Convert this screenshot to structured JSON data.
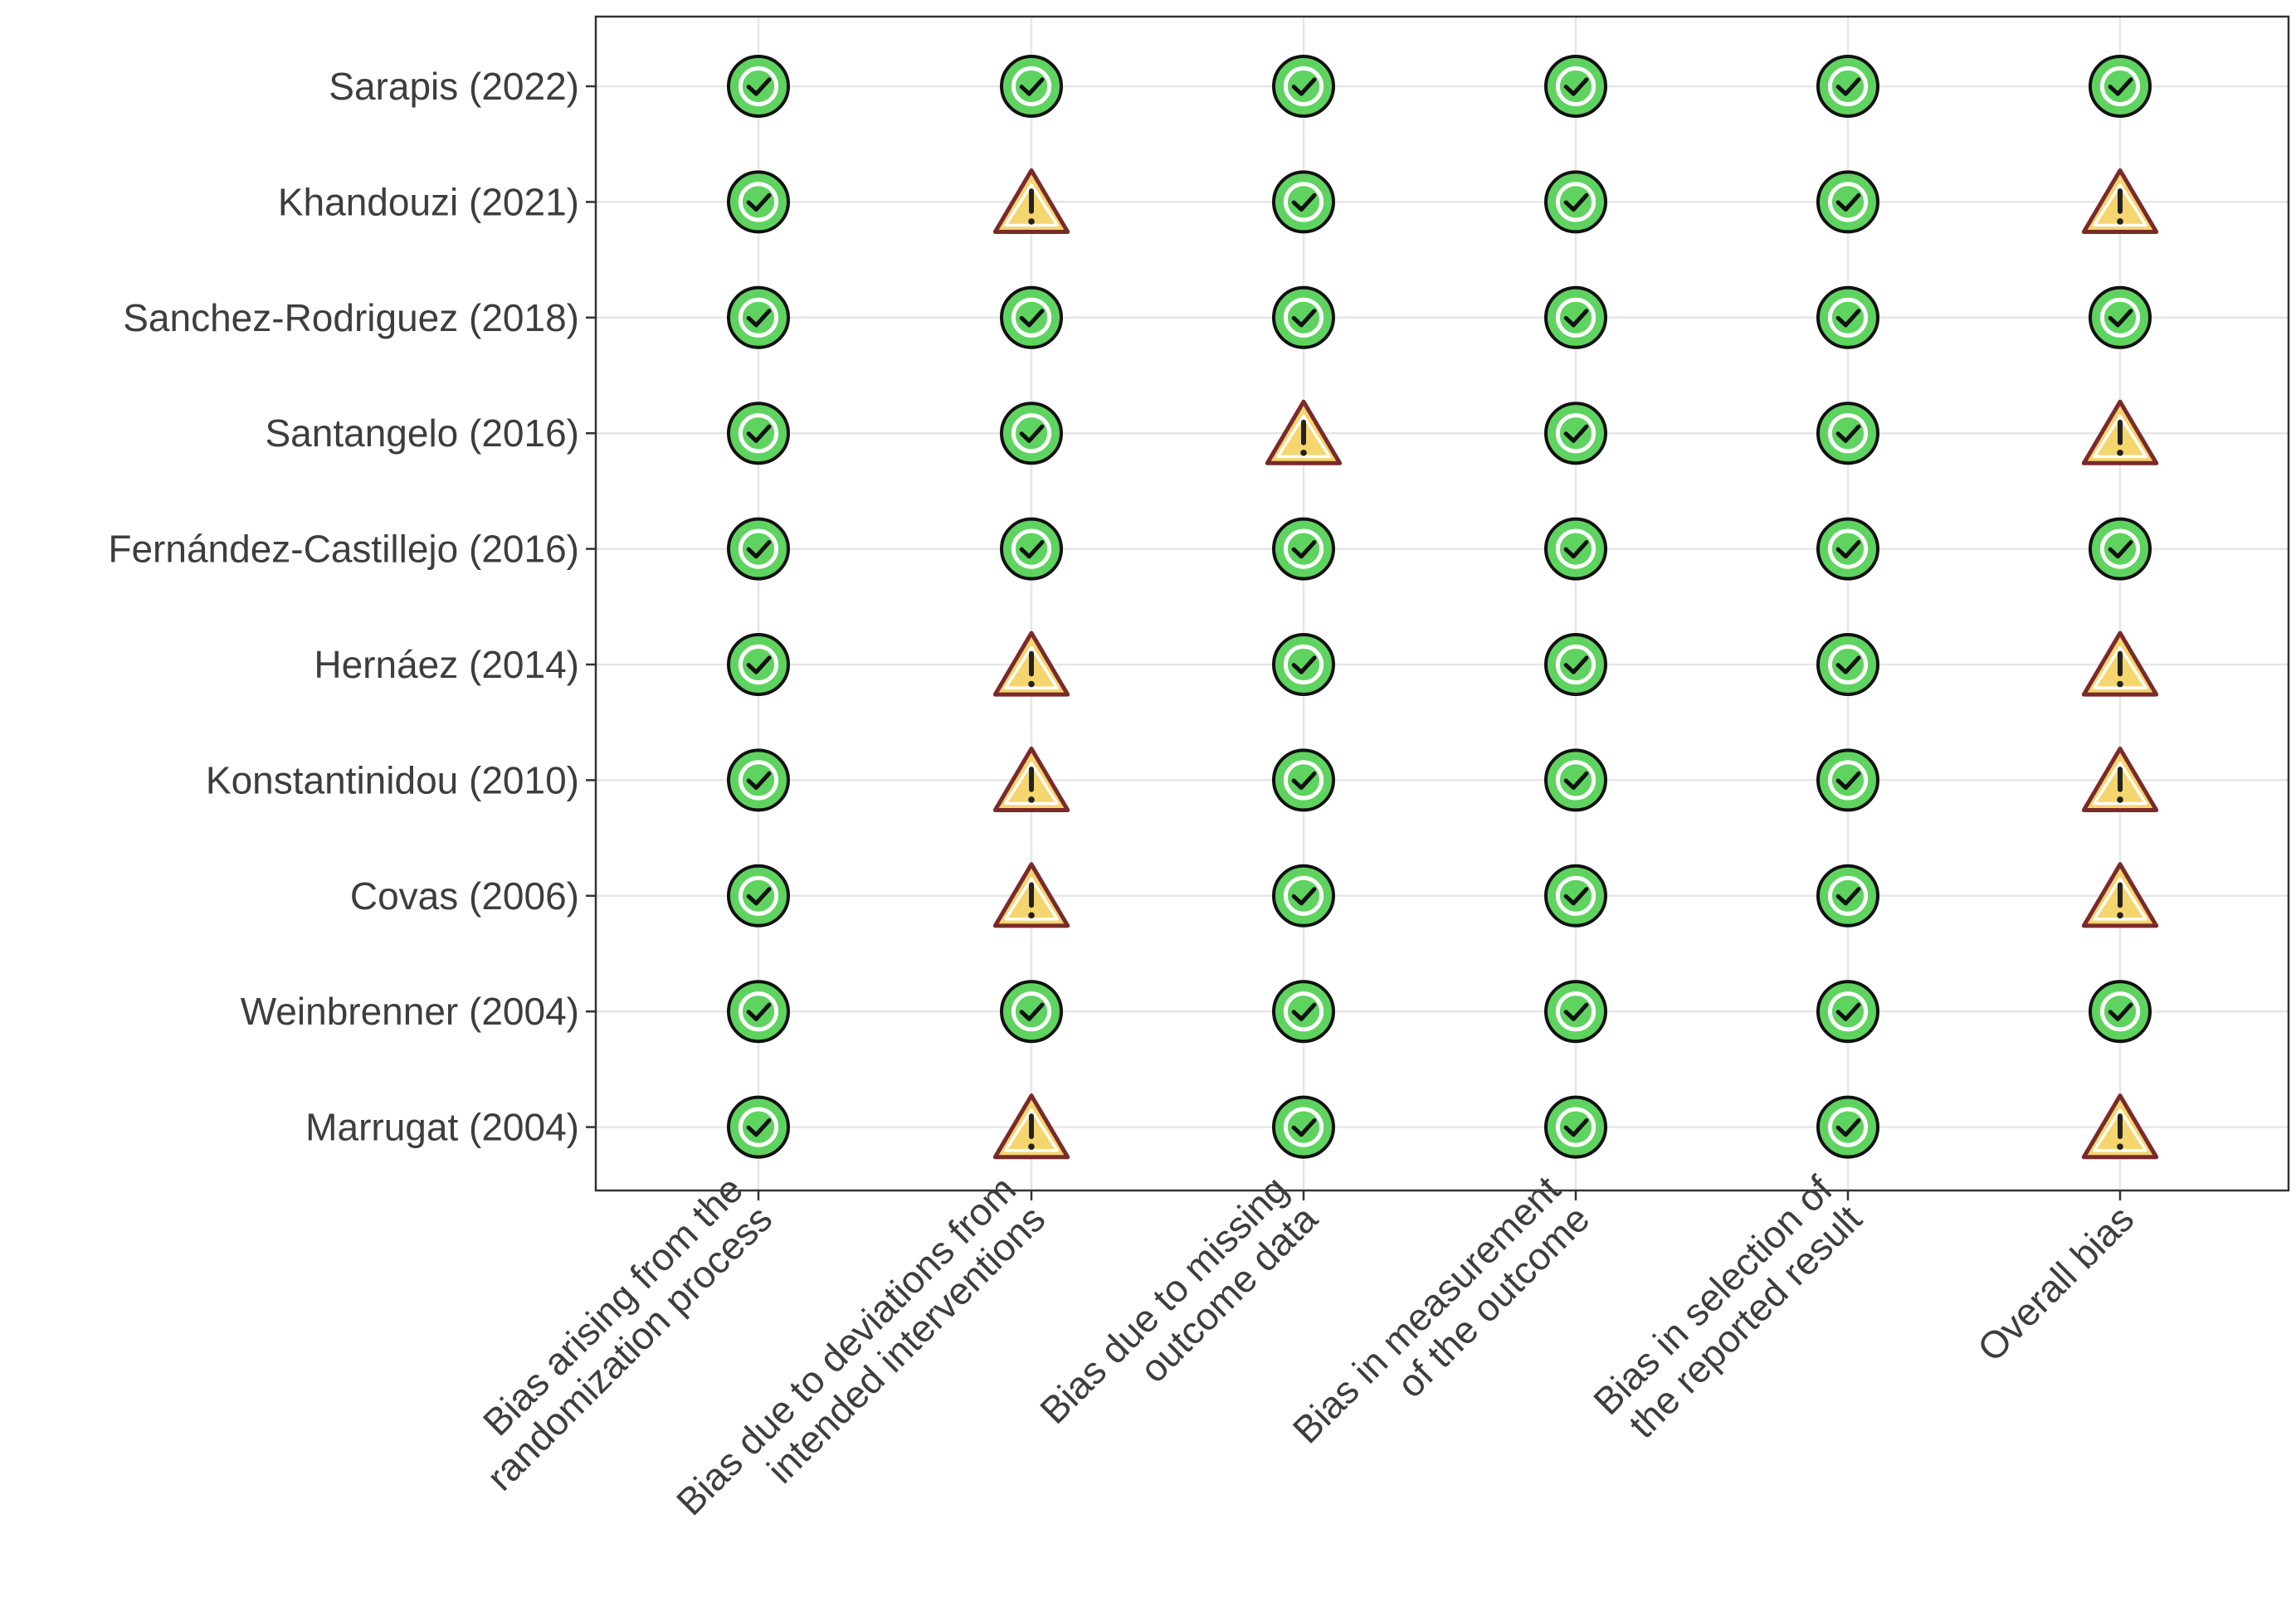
{
  "chart_data": {
    "type": "table",
    "rows": [
      "Sarapis (2022)",
      "Khandouzi (2021)",
      "Sanchez-Rodriguez (2018)",
      "Santangelo (2016)",
      "Fernández-Castillejo (2016)",
      "Hernáez (2014)",
      "Konstantinidou (2010)",
      "Covas (2006)",
      "Weinbrenner (2004)",
      "Marrugat (2004)"
    ],
    "columns": [
      [
        "Bias arising from the",
        "randomization process"
      ],
      [
        "Bias due to deviations from",
        "intended interventions"
      ],
      [
        "Bias due to missing",
        "outcome data"
      ],
      [
        "Bias in measurement",
        "of the outcome"
      ],
      [
        "Bias in selection of",
        "the reported result"
      ],
      [
        "Overall bias"
      ]
    ],
    "values": [
      [
        "low",
        "low",
        "low",
        "low",
        "low",
        "low"
      ],
      [
        "low",
        "some",
        "low",
        "low",
        "low",
        "some"
      ],
      [
        "low",
        "low",
        "low",
        "low",
        "low",
        "low"
      ],
      [
        "low",
        "low",
        "some",
        "low",
        "low",
        "some"
      ],
      [
        "low",
        "low",
        "low",
        "low",
        "low",
        "low"
      ],
      [
        "low",
        "some",
        "low",
        "low",
        "low",
        "some"
      ],
      [
        "low",
        "some",
        "low",
        "low",
        "low",
        "some"
      ],
      [
        "low",
        "some",
        "low",
        "low",
        "low",
        "some"
      ],
      [
        "low",
        "low",
        "low",
        "low",
        "low",
        "low"
      ],
      [
        "low",
        "some",
        "low",
        "low",
        "low",
        "some"
      ]
    ],
    "icons": {
      "low": "check-circle-icon",
      "some": "warning-triangle-icon"
    },
    "grid": true,
    "legend": "none"
  },
  "colors": {
    "low_fill": "#5fd35f",
    "warning_fill": "#f5d56e",
    "warning_stroke": "#7a2a2a",
    "grid": "#e6e6e6",
    "border": "#333333",
    "text": "#3d3d3d"
  }
}
